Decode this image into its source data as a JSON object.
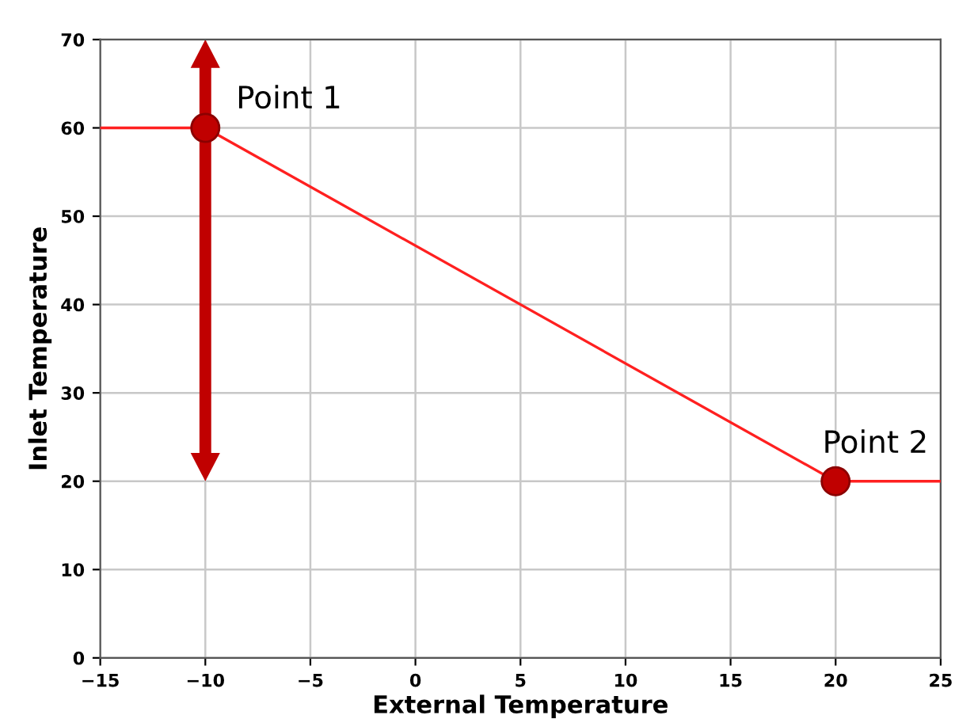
{
  "chart_data": {
    "type": "line",
    "xlabel": "External Temperature",
    "ylabel": "Inlet Temperature",
    "series": [
      {
        "color": "#ff2020",
        "x": [
          -15,
          -10,
          20,
          25
        ],
        "values": [
          60,
          60,
          20,
          20
        ],
        "marker": "none"
      },
      {
        "type": "scatter",
        "color": "#c00000",
        "x": [
          -10,
          20
        ],
        "values": [
          60,
          20
        ],
        "marker": "circle"
      }
    ],
    "annotations": [
      {
        "text": "Point 1",
        "x": -10,
        "y": 60
      },
      {
        "text": "Point 2",
        "x": 20,
        "y": 20
      }
    ],
    "xlim": [
      -15,
      25
    ],
    "ylim": [
      0,
      70
    ],
    "xticks": [
      {
        "value": -15,
        "label": "−15"
      },
      {
        "value": -10,
        "label": "−10"
      },
      {
        "value": -5,
        "label": "−5"
      },
      0,
      5,
      10,
      15,
      20,
      25
    ],
    "yticks": [
      0,
      10,
      20,
      30,
      40,
      50,
      60,
      70
    ],
    "grid": true
  }
}
